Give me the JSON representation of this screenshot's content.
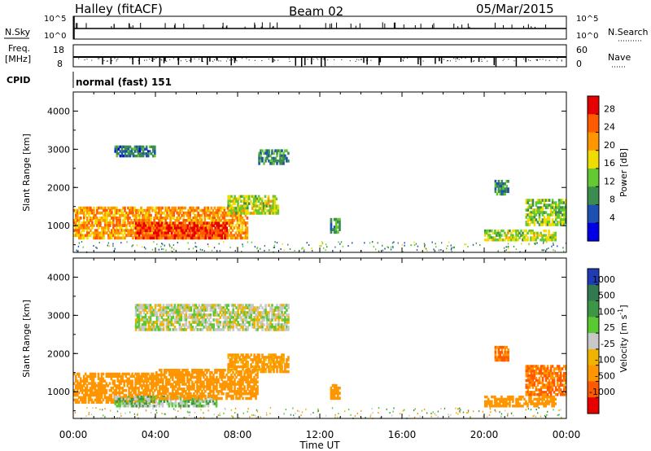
{
  "header": {
    "station": "Halley (fitACF)",
    "beam": "Beam 02",
    "date": "05/Mar/2015"
  },
  "top_panels": {
    "nsky_label": "N.Sky",
    "nsearch_label": "N.Search",
    "nsky_ticks": [
      "10^5",
      "10^0"
    ],
    "freq_label_1": "Freq.",
    "freq_label_2": "[MHz]",
    "freq_ticks": [
      "18",
      "8"
    ],
    "nave_label": "Nave",
    "nave_ticks": [
      "60",
      "0"
    ],
    "cpid_label": "CPID",
    "cpid_value": "normal (fast) 151"
  },
  "colorbars": {
    "power": {
      "label": "Power [dB]",
      "ticks": [
        "28",
        "24",
        "20",
        "16",
        "12",
        "8",
        "4"
      ],
      "colors": [
        "#e60000",
        "#ff5a00",
        "#ff9600",
        "#f0dc00",
        "#64c832",
        "#3c8c50",
        "#1e50b4",
        "#0000e6"
      ]
    },
    "velocity": {
      "label": "Velocity [m s",
      "label_sup": "-1",
      "label_end": "]",
      "ticks": [
        "1000",
        "500",
        "100",
        "25",
        "-25",
        "-100",
        "-500",
        "-1000"
      ],
      "colors": [
        "#1e3cb4",
        "#327850",
        "#3c9646",
        "#5ac832",
        "#c8c8c8",
        "#f0b400",
        "#ff9600",
        "#ff5a00",
        "#e60000"
      ]
    }
  },
  "chart_data": [
    {
      "type": "heatmap",
      "title": "Power",
      "xlabel": "Time UT",
      "ylabel": "Slant Range [km]",
      "x_ticks": [
        "00:00",
        "04:00",
        "08:00",
        "12:00",
        "16:00",
        "20:00",
        "00:00"
      ],
      "y_ticks": [
        "1000",
        "2000",
        "3000",
        "4000"
      ],
      "ylim": [
        300,
        4500
      ],
      "colorbar": "Power [dB]",
      "regions": [
        {
          "t": [
            0.0,
            8.5
          ],
          "r": [
            650,
            1500
          ],
          "value": 22
        },
        {
          "t": [
            3.0,
            7.5
          ],
          "r": [
            650,
            1100
          ],
          "value": 28
        },
        {
          "t": [
            7.5,
            10.0
          ],
          "r": [
            1300,
            1800
          ],
          "value": 16
        },
        {
          "t": [
            2.0,
            4.0
          ],
          "r": [
            2800,
            3100
          ],
          "value": 8
        },
        {
          "t": [
            9.0,
            10.5
          ],
          "r": [
            2600,
            3000
          ],
          "value": 10
        },
        {
          "t": [
            12.5,
            13.0
          ],
          "r": [
            800,
            1200
          ],
          "value": 10
        },
        {
          "t": [
            20.0,
            23.5
          ],
          "r": [
            600,
            900
          ],
          "value": 16
        },
        {
          "t": [
            22.0,
            24.0
          ],
          "r": [
            1000,
            1700
          ],
          "value": 14
        },
        {
          "t": [
            20.5,
            21.2
          ],
          "r": [
            1800,
            2200
          ],
          "value": 10
        }
      ]
    },
    {
      "type": "heatmap",
      "title": "Velocity",
      "xlabel": "Time UT",
      "ylabel": "Slant Range [km]",
      "x_ticks": [
        "00:00",
        "04:00",
        "08:00",
        "12:00",
        "16:00",
        "20:00",
        "00:00"
      ],
      "y_ticks": [
        "1000",
        "2000",
        "3000",
        "4000"
      ],
      "ylim": [
        300,
        4500
      ],
      "colorbar": "Velocity [m s-1]",
      "regions": [
        {
          "t": [
            0.0,
            4.0
          ],
          "r": [
            700,
            1500
          ],
          "value": -200
        },
        {
          "t": [
            2.0,
            7.0
          ],
          "r": [
            600,
            900
          ],
          "value": 40
        },
        {
          "t": [
            4.0,
            9.0
          ],
          "r": [
            800,
            1600
          ],
          "value": -200
        },
        {
          "t": [
            7.5,
            10.5
          ],
          "r": [
            1500,
            2000
          ],
          "value": -100
        },
        {
          "t": [
            3.0,
            10.5
          ],
          "r": [
            2600,
            3300
          ],
          "value": 0
        },
        {
          "t": [
            12.5,
            13.0
          ],
          "r": [
            800,
            1200
          ],
          "value": -150
        },
        {
          "t": [
            20.0,
            23.5
          ],
          "r": [
            600,
            900
          ],
          "value": -150
        },
        {
          "t": [
            20.5,
            21.2
          ],
          "r": [
            1800,
            2200
          ],
          "value": -300
        },
        {
          "t": [
            22.0,
            24.0
          ],
          "r": [
            900,
            1700
          ],
          "value": -300
        }
      ]
    }
  ]
}
